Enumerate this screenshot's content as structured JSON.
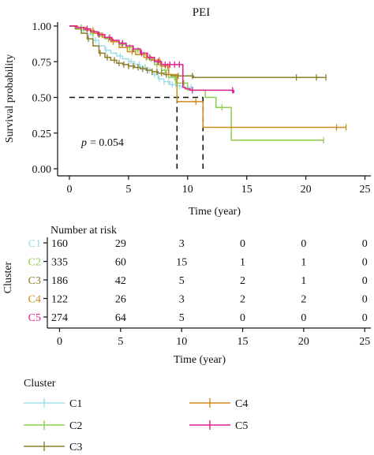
{
  "colors": {
    "C1": "#9fdde8",
    "C2": "#8ccf4e",
    "C3": "#8b7d2a",
    "C4": "#cf8a1e",
    "C5": "#df1f8f",
    "median": "#111111"
  },
  "chart_data": [
    {
      "type": "line",
      "subtype": "kaplan-meier",
      "title": "PEI",
      "xlabel": "Time (year)",
      "ylabel": "Survival probability",
      "xlim": [
        -1,
        25.5
      ],
      "ylim": [
        0,
        1
      ],
      "xticks": [
        0,
        5,
        10,
        15,
        20,
        25
      ],
      "yticks": [
        "0.00",
        "0.25",
        "0.50",
        "0.75",
        "1.00"
      ],
      "annotation": {
        "p_label": "p",
        "p_value": "= 0.054"
      },
      "median_lines": [
        {
          "x": 9.1,
          "y": 0.5
        },
        {
          "x": 11.3,
          "y": 0.5
        }
      ],
      "series": [
        {
          "name": "C1",
          "points": [
            [
              0,
              1
            ],
            [
              0.5,
              0.99
            ],
            [
              1,
              0.97
            ],
            [
              1.5,
              0.94
            ],
            [
              2,
              0.9
            ],
            [
              2.5,
              0.86
            ],
            [
              3,
              0.83
            ],
            [
              3.5,
              0.81
            ],
            [
              4,
              0.79
            ],
            [
              4.5,
              0.77
            ],
            [
              5,
              0.75
            ],
            [
              5.5,
              0.73
            ],
            [
              6,
              0.71
            ],
            [
              6.5,
              0.69
            ],
            [
              7,
              0.66
            ],
            [
              7.5,
              0.63
            ],
            [
              8,
              0.61
            ],
            [
              8.5,
              0.59
            ],
            [
              9,
              0.58
            ],
            [
              9.5,
              0.57
            ],
            [
              10.5,
              0.57
            ]
          ],
          "censor": [
            1.2,
            2.2,
            3.1,
            4.3,
            5.2,
            5.9,
            6.4,
            6.8,
            7.2,
            7.6,
            8.0,
            8.4,
            8.7,
            9.3,
            10.3
          ]
        },
        {
          "name": "C2",
          "points": [
            [
              0,
              1
            ],
            [
              0.6,
              0.99
            ],
            [
              1.2,
              0.97
            ],
            [
              1.8,
              0.95
            ],
            [
              2.4,
              0.93
            ],
            [
              3,
              0.91
            ],
            [
              3.6,
              0.89
            ],
            [
              4.2,
              0.87
            ],
            [
              4.8,
              0.85
            ],
            [
              5.4,
              0.83
            ],
            [
              6,
              0.8
            ],
            [
              6.6,
              0.77
            ],
            [
              7.2,
              0.73
            ],
            [
              7.8,
              0.69
            ],
            [
              8.4,
              0.64
            ],
            [
              9,
              0.6
            ],
            [
              10,
              0.55
            ],
            [
              11.5,
              0.5
            ],
            [
              12.4,
              0.43
            ],
            [
              13.7,
              0.2
            ],
            [
              21.5,
              0.2
            ]
          ],
          "censor": [
            1.0,
            2.0,
            3.3,
            4.4,
            5.1,
            5.8,
            6.3,
            6.9,
            7.4,
            8.1,
            8.9,
            9.7,
            12.9,
            21.5
          ]
        },
        {
          "name": "C3",
          "points": [
            [
              0,
              1
            ],
            [
              0.5,
              0.98
            ],
            [
              1,
              0.95
            ],
            [
              1.5,
              0.91
            ],
            [
              2,
              0.86
            ],
            [
              2.5,
              0.81
            ],
            [
              3,
              0.78
            ],
            [
              3.5,
              0.76
            ],
            [
              4,
              0.74
            ],
            [
              4.5,
              0.73
            ],
            [
              5,
              0.72
            ],
            [
              5.5,
              0.71
            ],
            [
              6,
              0.7
            ],
            [
              6.5,
              0.69
            ],
            [
              7,
              0.68
            ],
            [
              7.5,
              0.67
            ],
            [
              8,
              0.66
            ],
            [
              8.6,
              0.65
            ],
            [
              9.5,
              0.65
            ],
            [
              10.5,
              0.64
            ],
            [
              21.5,
              0.64
            ],
            [
              21.7,
              0.64
            ]
          ],
          "censor": [
            1.6,
            2.6,
            3.2,
            3.8,
            4.2,
            4.6,
            5.0,
            5.4,
            5.8,
            6.2,
            6.6,
            7.0,
            7.4,
            7.8,
            8.2,
            9.2,
            10.4,
            19.2,
            20.9,
            21.7
          ]
        },
        {
          "name": "C4",
          "points": [
            [
              0,
              1
            ],
            [
              0.7,
              0.99
            ],
            [
              1.4,
              0.97
            ],
            [
              2.1,
              0.95
            ],
            [
              2.8,
              0.92
            ],
            [
              3.5,
              0.89
            ],
            [
              4.2,
              0.85
            ],
            [
              4.9,
              0.82
            ],
            [
              5.6,
              0.8
            ],
            [
              6.3,
              0.78
            ],
            [
              7,
              0.76
            ],
            [
              7.7,
              0.72
            ],
            [
              8.4,
              0.66
            ],
            [
              9.1,
              0.47
            ],
            [
              10.5,
              0.47
            ],
            [
              11.2,
              0.47
            ],
            [
              11.3,
              0.29
            ],
            [
              23,
              0.29
            ],
            [
              23.4,
              0.29
            ]
          ],
          "censor": [
            2.0,
            3.7,
            5.3,
            6.5,
            7.6,
            8.3,
            10.7,
            22.6,
            23.4
          ]
        },
        {
          "name": "C5",
          "points": [
            [
              0,
              1
            ],
            [
              0.6,
              0.99
            ],
            [
              1.2,
              0.98
            ],
            [
              1.8,
              0.96
            ],
            [
              2.4,
              0.94
            ],
            [
              3,
              0.92
            ],
            [
              3.6,
              0.9
            ],
            [
              4.2,
              0.88
            ],
            [
              4.8,
              0.86
            ],
            [
              5.4,
              0.84
            ],
            [
              6,
              0.81
            ],
            [
              6.6,
              0.78
            ],
            [
              7.2,
              0.75
            ],
            [
              7.8,
              0.73
            ],
            [
              9.5,
              0.73
            ],
            [
              9.6,
              0.57
            ],
            [
              9.8,
              0.56
            ],
            [
              10.2,
              0.55
            ],
            [
              11.5,
              0.55
            ],
            [
              13.9,
              0.53
            ]
          ],
          "censor": [
            1.5,
            2.5,
            3.4,
            4.5,
            5.4,
            6.1,
            6.8,
            7.5,
            8.1,
            8.5,
            8.9,
            9.3,
            10.4,
            13.8
          ]
        }
      ]
    },
    {
      "type": "table",
      "title": "Number at risk",
      "xlabel": "Time (year)",
      "ylabel": "Cluster",
      "xlim": [
        -1,
        25.5
      ],
      "xticks": [
        0,
        5,
        10,
        15,
        20,
        25
      ],
      "rows": [
        {
          "name": "C1",
          "values": [
            "160",
            "29",
            "3",
            "0",
            "0",
            "0"
          ]
        },
        {
          "name": "C2",
          "values": [
            "335",
            "60",
            "15",
            "1",
            "1",
            "0"
          ]
        },
        {
          "name": "C3",
          "values": [
            "186",
            "42",
            "5",
            "2",
            "1",
            "0"
          ]
        },
        {
          "name": "C4",
          "values": [
            "122",
            "26",
            "3",
            "2",
            "2",
            "0"
          ]
        },
        {
          "name": "C5",
          "values": [
            "274",
            "64",
            "5",
            "0",
            "0",
            "0"
          ]
        }
      ]
    }
  ],
  "legend": {
    "title": "Cluster",
    "items": [
      "C1",
      "C2",
      "C3",
      "C4",
      "C5"
    ]
  }
}
